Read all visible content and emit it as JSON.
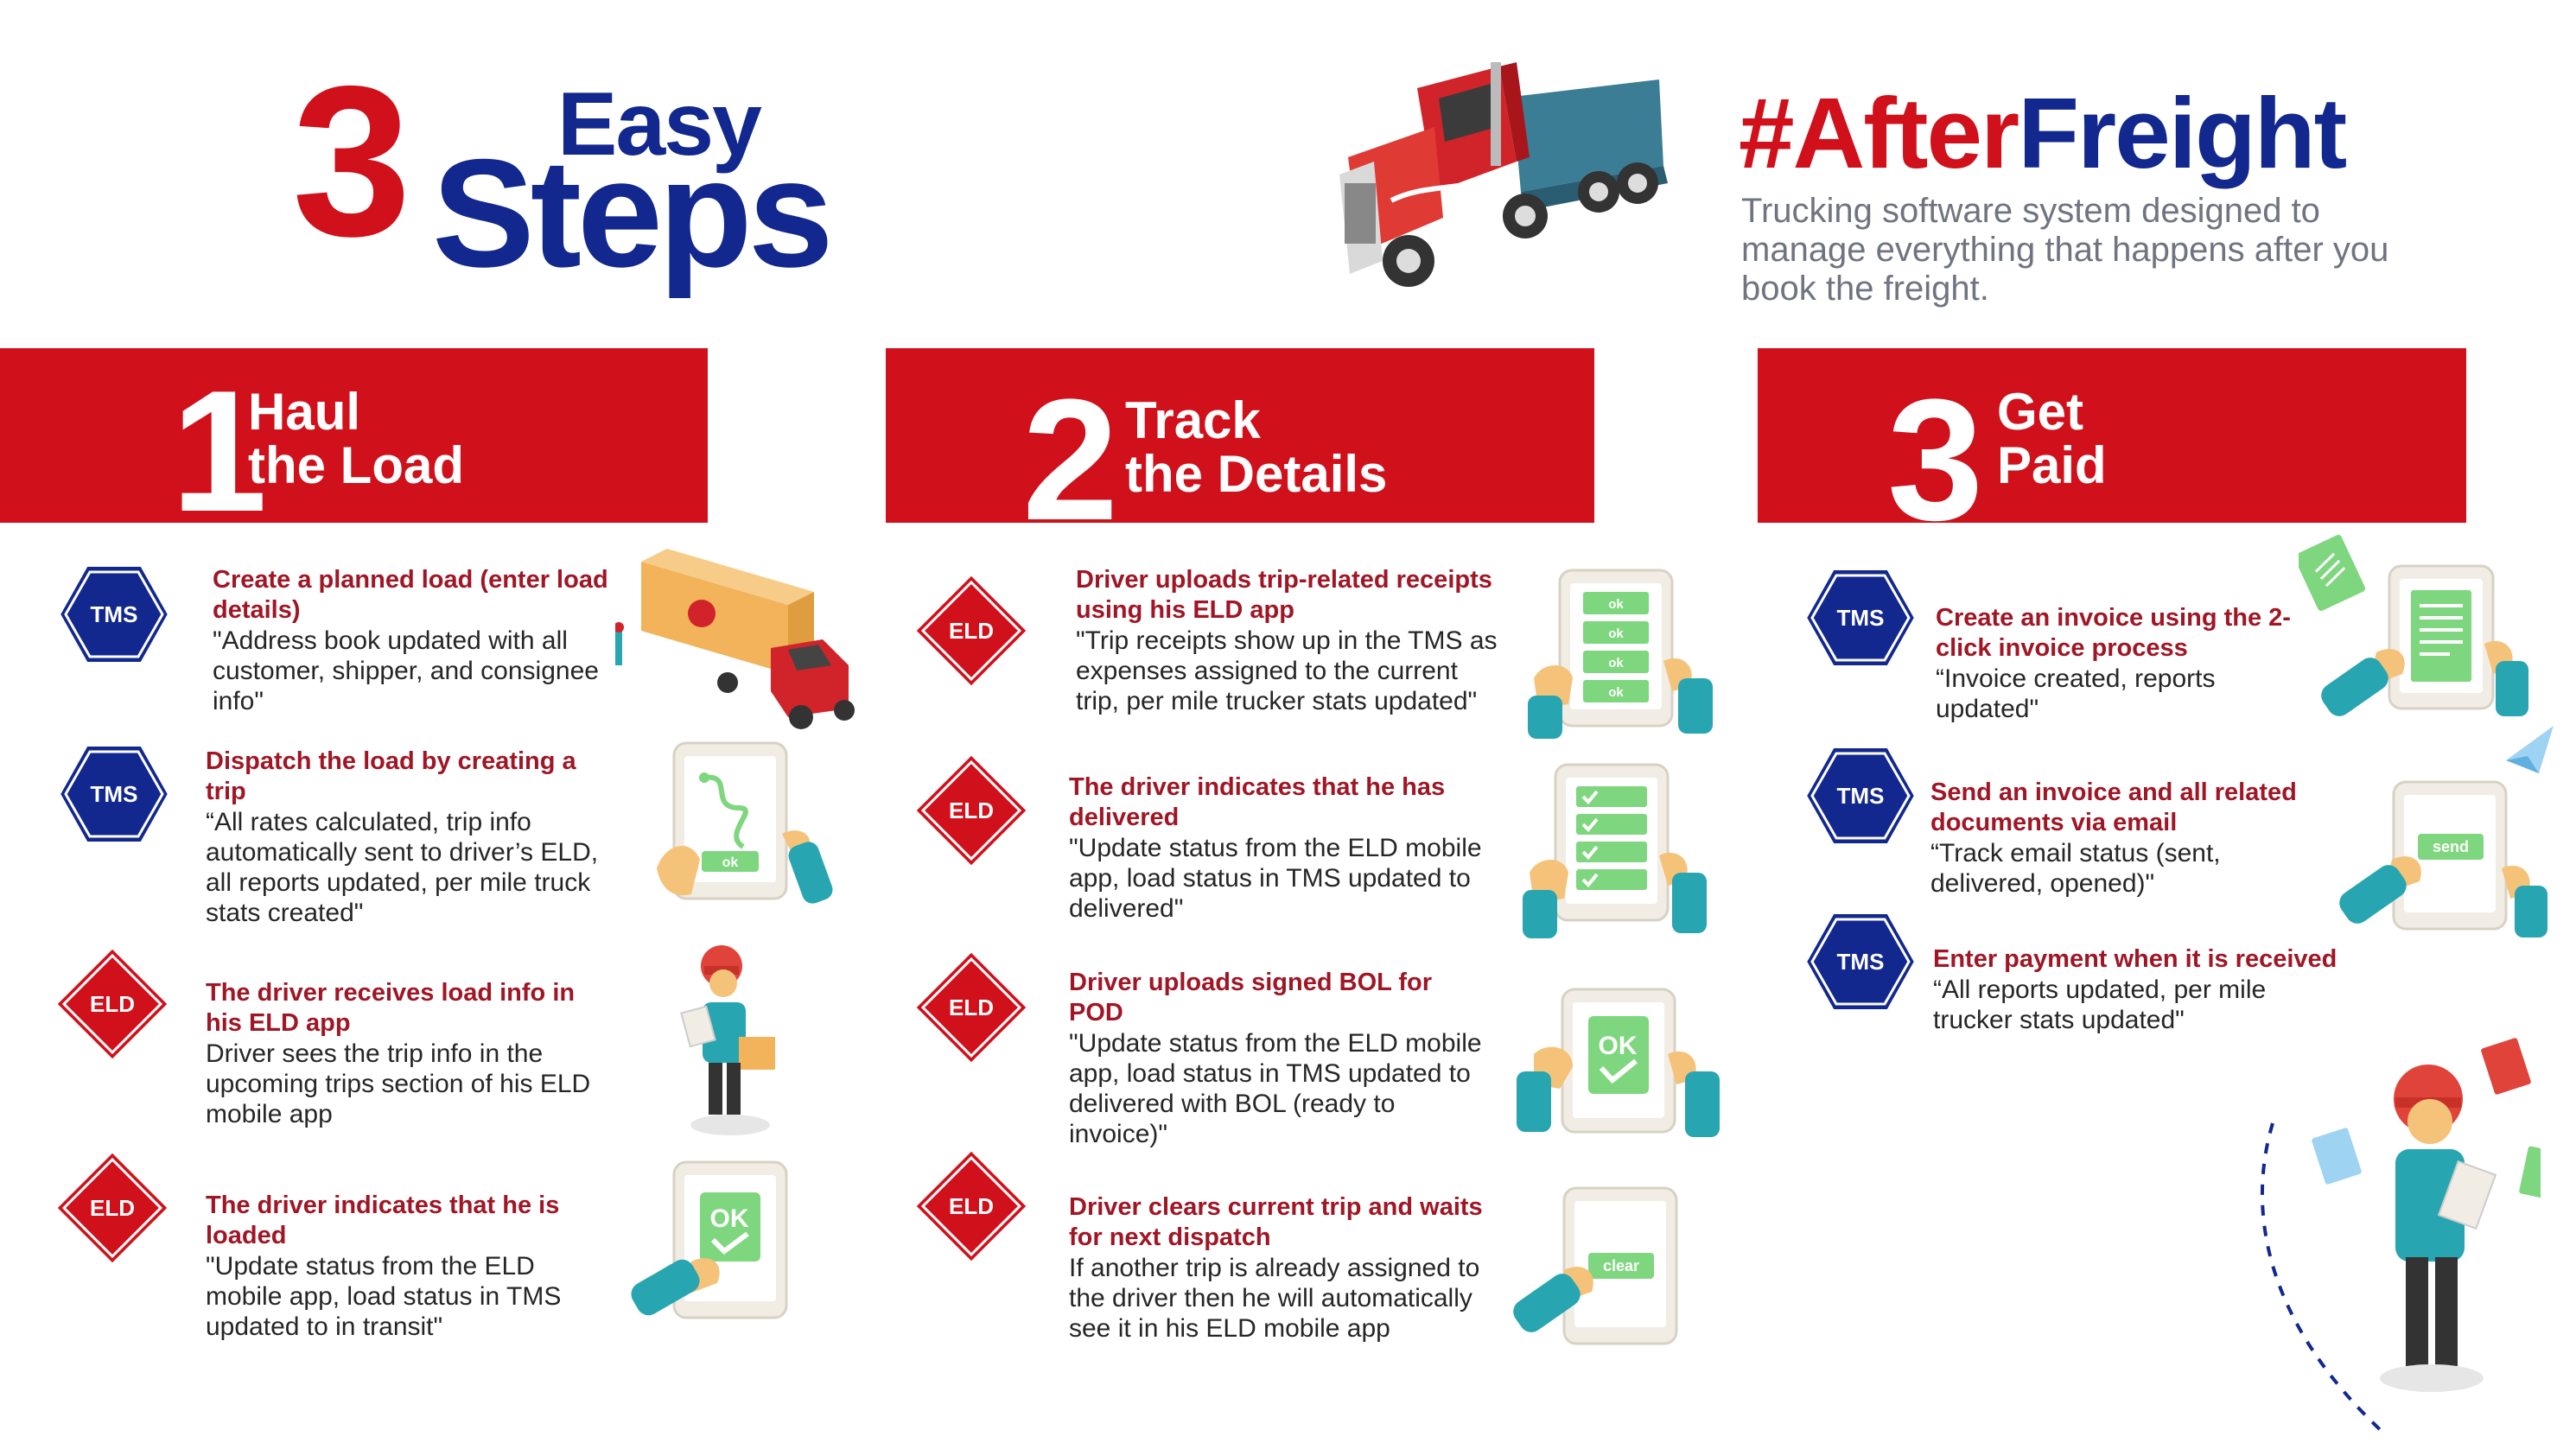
{
  "header": {
    "big_number": "3",
    "easy": "Easy",
    "steps": "Steps",
    "hashtag_red": "#After",
    "hashtag_blue": "Freight",
    "tagline": "Trucking software system designed to manage everything that happens after you book the freight."
  },
  "colors": {
    "brand_red": "#d0111b",
    "brand_blue": "#12288e",
    "title_red": "#a01625",
    "tablet_green": "#7ed67e",
    "skin": "#f5c27a",
    "sleeve": "#27a5b0"
  },
  "columns": [
    {
      "number": "1",
      "title_line1": "Haul",
      "title_line2": "the Load",
      "items": [
        {
          "badge": "TMS",
          "title": "Create a planned load (enter load details)",
          "desc": "\"Address book updated with all customer, shipper, and consignee info\"",
          "illustration": "trailer-truck-icon"
        },
        {
          "badge": "TMS",
          "title": "Dispatch the load by creating a trip",
          "desc": "“All rates calculated, trip info automatically sent to driver’s ELD, all reports updated, per mile truck stats created\"",
          "illustration": "tablet-route-icon",
          "tablet_label": "ok"
        },
        {
          "badge": "ELD",
          "title": "The driver receives load info in his ELD app",
          "desc": "Driver sees the trip info in the upcoming trips section of his ELD mobile app",
          "illustration": "delivery-worker-icon"
        },
        {
          "badge": "ELD",
          "title": "The driver indicates that he is loaded",
          "desc": "\"Update status from the ELD mobile app, load status in TMS updated to in transit\"",
          "illustration": "tablet-ok-icon",
          "tablet_label": "OK"
        }
      ]
    },
    {
      "number": "2",
      "title_line1": "Track",
      "title_line2": "the Details",
      "items": [
        {
          "badge": "ELD",
          "title": "Driver uploads trip-related receipts using his ELD app",
          "desc": "\"Trip receipts show up in the TMS as expenses assigned to the current trip, per mile trucker stats updated\"",
          "illustration": "tablet-list-icon",
          "tablet_labels": [
            "ok",
            "ok",
            "ok",
            "ok"
          ]
        },
        {
          "badge": "ELD",
          "title": "The driver indicates that he has delivered",
          "desc": "\"Update status from the ELD mobile app, load status in TMS updated to delivered\"",
          "illustration": "tablet-checklist-icon"
        },
        {
          "badge": "ELD",
          "title": "Driver uploads signed BOL for POD",
          "desc": "\"Update status from the ELD mobile app, load status in TMS updated to delivered with BOL (ready to invoice)\"",
          "illustration": "tablet-ok-icon",
          "tablet_label": "OK"
        },
        {
          "badge": "ELD",
          "title": "Driver clears current trip and waits for next dispatch",
          "desc": "If another trip is already assigned to the driver then he will automatically see it in his ELD mobile app",
          "illustration": "tablet-clear-icon",
          "tablet_label": "clear"
        }
      ]
    },
    {
      "number": "3",
      "title_line1": "Get",
      "title_line2": "Paid",
      "items": [
        {
          "badge": "TMS",
          "title": "Create an invoice using the 2-click invoice process",
          "desc": "“Invoice created, reports updated\"",
          "illustration": "tablet-invoice-icon"
        },
        {
          "badge": "TMS",
          "title": "Send an invoice and all related documents via email",
          "desc": "“Track email status (sent, delivered, opened)\"",
          "illustration": "tablet-send-icon",
          "tablet_label": "send"
        },
        {
          "badge": "TMS",
          "title": "Enter payment when it is received",
          "desc": "“All reports updated, per mile trucker stats updated\"",
          "illustration": "person-documents-icon"
        }
      ]
    }
  ]
}
